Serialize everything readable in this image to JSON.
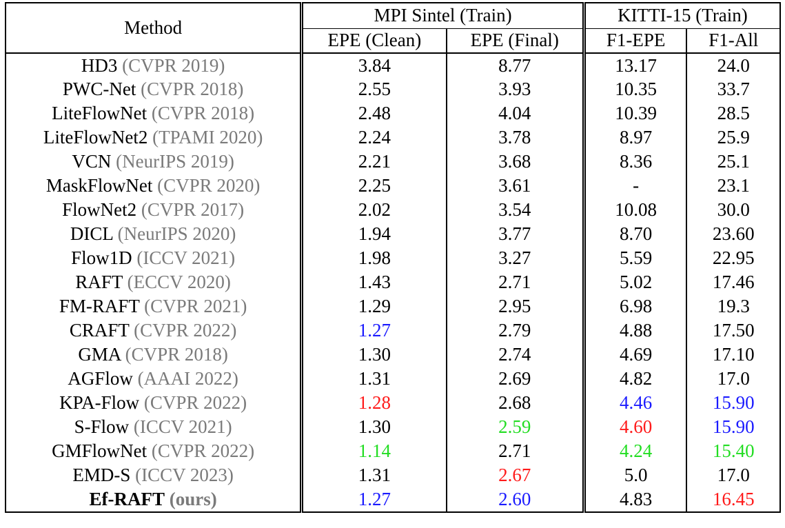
{
  "header": {
    "method": "Method",
    "sintel_group": "MPI Sintel (Train)",
    "kitti_group": "KITTI-15 (Train)",
    "epe_clean": "EPE (Clean)",
    "epe_final": "EPE (Final)",
    "f1_epe": "F1-EPE",
    "f1_all": "F1-All"
  },
  "colors": {
    "first": "#ff1a1a",
    "second": "#22dd22",
    "third": "#1a1aff",
    "venue": "#7a7a7a"
  },
  "rows": [
    {
      "name": "HD3",
      "venue": "(CVPR 2019)",
      "clean": "3.84",
      "final": "8.77",
      "f1epe": "13.17",
      "f1all": "24.0"
    },
    {
      "name": "PWC-Net",
      "venue": "(CVPR 2018)",
      "clean": "2.55",
      "final": "3.93",
      "f1epe": "10.35",
      "f1all": "33.7"
    },
    {
      "name": "LiteFlowNet",
      "venue": "(CVPR 2018)",
      "clean": "2.48",
      "final": "4.04",
      "f1epe": "10.39",
      "f1all": "28.5"
    },
    {
      "name": "LiteFlowNet2",
      "venue": "(TPAMI 2020)",
      "clean": "2.24",
      "final": "3.78",
      "f1epe": "8.97",
      "f1all": "25.9"
    },
    {
      "name": "VCN",
      "venue": "(NeurIPS 2019)",
      "clean": "2.21",
      "final": "3.68",
      "f1epe": "8.36",
      "f1all": "25.1"
    },
    {
      "name": "MaskFlowNet",
      "venue": "(CVPR 2020)",
      "clean": "2.25",
      "final": "3.61",
      "f1epe": "-",
      "f1all": "23.1"
    },
    {
      "name": "FlowNet2",
      "venue": "(CVPR 2017)",
      "clean": "2.02",
      "final": "3.54",
      "f1epe": "10.08",
      "f1all": "30.0"
    },
    {
      "name": "DICL",
      "venue": "(NeurIPS 2020)",
      "clean": "1.94",
      "final": "3.77",
      "f1epe": "8.70",
      "f1all": "23.60"
    },
    {
      "name": "Flow1D",
      "venue": "(ICCV 2021)",
      "clean": "1.98",
      "final": "3.27",
      "f1epe": "5.59",
      "f1all": "22.95"
    },
    {
      "name": "RAFT",
      "venue": "(ECCV 2020)",
      "clean": "1.43",
      "final": "2.71",
      "f1epe": "5.02",
      "f1all": "17.46"
    },
    {
      "name": "FM-RAFT",
      "venue": "(CVPR 2021)",
      "clean": "1.29",
      "final": "2.95",
      "f1epe": "6.98",
      "f1all": "19.3"
    },
    {
      "name": "CRAFT",
      "venue": "(CVPR 2022)",
      "clean": "1.27",
      "final": "2.79",
      "f1epe": "4.88",
      "f1all": "17.50"
    },
    {
      "name": "GMA",
      "venue": "(CVPR 2018)",
      "clean": "1.30",
      "final": "2.74",
      "f1epe": "4.69",
      "f1all": "17.10"
    },
    {
      "name": "AGFlow",
      "venue": "(AAAI 2022)",
      "clean": "1.31",
      "final": "2.69",
      "f1epe": "4.82",
      "f1all": "17.0"
    },
    {
      "name": "KPA-Flow",
      "venue": "(CVPR 2022)",
      "clean": "1.28",
      "final": "2.68",
      "f1epe": "4.46",
      "f1all": "15.90"
    },
    {
      "name": "S-Flow",
      "venue": "(ICCV 2021)",
      "clean": "1.30",
      "final": "2.59",
      "f1epe": "4.60",
      "f1all": "15.90"
    },
    {
      "name": "GMFlowNet",
      "venue": "(CVPR 2022)",
      "clean": "1.14",
      "final": "2.71",
      "f1epe": "4.24",
      "f1all": "15.40"
    },
    {
      "name": "EMD-S",
      "venue": "(ICCV 2023)",
      "clean": "1.31",
      "final": "2.67",
      "f1epe": "5.0",
      "f1all": "17.0"
    },
    {
      "name": "Ef-RAFT",
      "venue": "(ours)",
      "clean": "1.27",
      "final": "2.60",
      "f1epe": "4.83",
      "f1all": "16.45"
    }
  ]
}
